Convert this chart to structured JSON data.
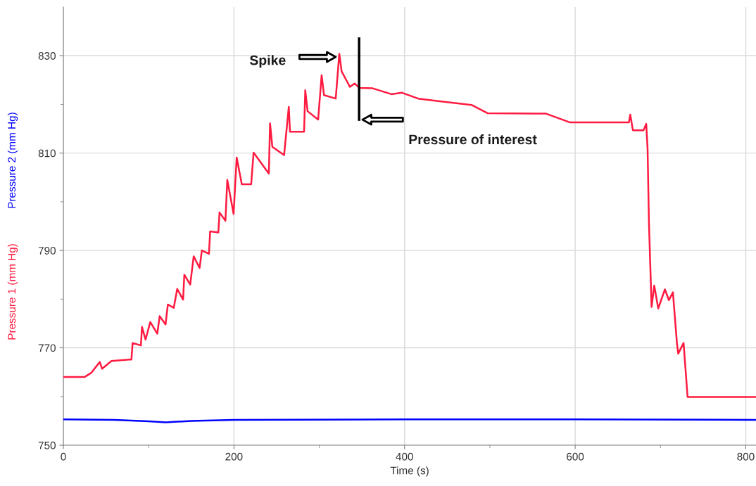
{
  "chart_data": {
    "type": "line",
    "xlabel": "Time (s)",
    "xlim": [
      0,
      812
    ],
    "xticks": [
      0,
      {
        "value": 100,
        "label": null
      },
      200,
      {
        "value": 300,
        "label": null
      },
      400,
      {
        "value": 500,
        "label": null
      },
      600,
      {
        "value": 700,
        "label": null
      },
      800
    ],
    "ylim": [
      750,
      840
    ],
    "yticks": [
      750,
      {
        "value": 760,
        "label": null
      },
      770,
      {
        "value": 780,
        "label": null
      },
      790,
      {
        "value": 800,
        "label": null
      },
      810,
      {
        "value": 820,
        "label": null
      },
      830
    ],
    "grid": true,
    "legend": false,
    "marker": "none",
    "line_style": "solid",
    "series": [
      {
        "name": "Pressure 1 (mm Hg)",
        "color": "#ff1a40",
        "x": [
          0,
          24.8,
          33,
          42.7,
          45.4,
          56.4,
          77,
          79.8,
          81.2,
          90.9,
          92.2,
          96.4,
          101.9,
          110.1,
          112.9,
          119.8,
          122.5,
          129.4,
          133.5,
          140.4,
          141.8,
          148.7,
          152.8,
          159.7,
          162.4,
          170.7,
          172.1,
          181.7,
          183.1,
          190,
          192.2,
          199.6,
          203.2,
          209.2,
          220.2,
          223,
          240.9,
          242.3,
          245,
          258.8,
          264.3,
          265.7,
          282.2,
          283.6,
          286.3,
          298.7,
          302.8,
          305.6,
          319.3,
          323.5,
          326.2,
          335.9,
          341.4,
          346.9,
          362.7,
          384.6,
          397,
          415.9,
          437.8,
          478.5,
          497.2,
          566,
          594.1,
          663,
          664.6,
          667.7,
          680.2,
          683.3,
          684.9,
          686.5,
          689.6,
          692.7,
          697.4,
          705.2,
          709.9,
          714.6,
          719.3,
          720.8,
          727.1,
          731.8,
          812
        ],
        "values": [
          764.0,
          764.0,
          764.9,
          767.1,
          765.7,
          767.3,
          767.6,
          767.6,
          771.0,
          770.5,
          774.3,
          771.7,
          775.3,
          772.9,
          776.5,
          774.8,
          778.9,
          778.2,
          782.1,
          779.9,
          785.0,
          783.0,
          788.8,
          786.4,
          790.0,
          789.3,
          793.9,
          793.7,
          797.8,
          796.1,
          804.5,
          797.5,
          809.1,
          803.6,
          803.6,
          810.1,
          805.8,
          816.1,
          811.3,
          809.6,
          819.5,
          814.4,
          814.4,
          822.9,
          818.6,
          816.9,
          826.0,
          821.9,
          821.2,
          830.4,
          826.8,
          823.6,
          824.3,
          823.4,
          823.3,
          822.1,
          822.4,
          821.2,
          820.7,
          819.9,
          818.2,
          818.1,
          816.3,
          816.3,
          817.9,
          814.7,
          814.7,
          816.0,
          810.9,
          795.7,
          778.4,
          782.8,
          778.1,
          782.0,
          779.8,
          781.4,
          771.0,
          768.8,
          771.0,
          759.9,
          759.9
        ]
      },
      {
        "name": "Pressure 2 (mm Hg)",
        "color": "#0000ff",
        "x": [
          0,
          60,
          100,
          120,
          150,
          200,
          400,
          600,
          812
        ],
        "values": [
          755.3,
          755.2,
          754.9,
          754.7,
          755.0,
          755.2,
          755.3,
          755.3,
          755.2
        ]
      }
    ],
    "annotations": [
      "Spike",
      "Pressure of interest"
    ]
  }
}
